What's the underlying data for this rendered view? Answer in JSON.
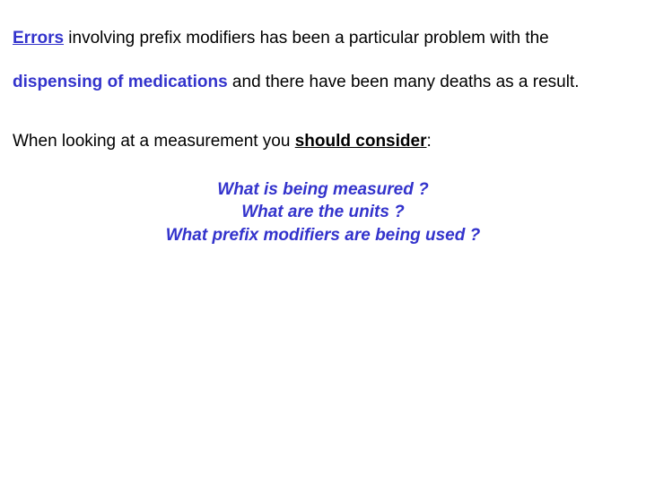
{
  "colors": {
    "accent": "#3333cc",
    "text": "#000000",
    "background": "#ffffff"
  },
  "typography": {
    "body_fontsize_pt": 14,
    "question_fontsize_pt": 14,
    "font_family": "Arial"
  },
  "para1": {
    "errors": "Errors",
    "seg1": " involving prefix modifiers has been a particular problem with the ",
    "dispensing": "dispensing of medications",
    "seg2": " and there have been many deaths as a result."
  },
  "para2": {
    "seg1": "When looking at a measurement you ",
    "consider": "should consider",
    "seg2": ":"
  },
  "questions": {
    "q1": "What is being measured ?",
    "q2": "What are the units ?",
    "q3": "What prefix modifiers are being used ?"
  }
}
